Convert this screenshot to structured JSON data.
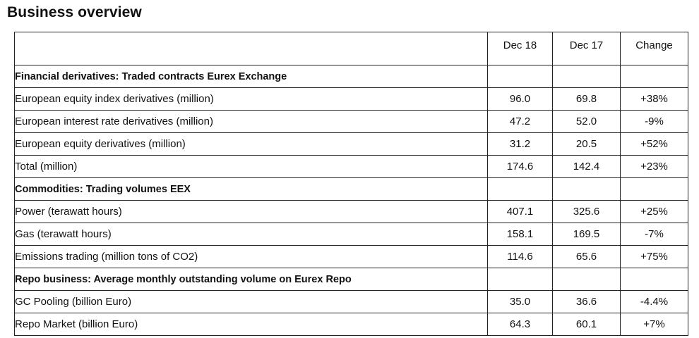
{
  "page": {
    "title": "Business overview"
  },
  "table": {
    "headers": [
      "",
      "Dec 18",
      "Dec 17",
      "Change"
    ],
    "sections": [
      {
        "title": "Financial derivatives: Traded contracts Eurex Exchange",
        "rows": [
          {
            "label": "European equity index derivatives (million)",
            "dec18": "96.0",
            "dec17": "69.8",
            "change": "+38%"
          },
          {
            "label": "European interest rate derivatives (million)",
            "dec18": "47.2",
            "dec17": "52.0",
            "change": "-9%"
          },
          {
            "label": "European equity derivatives (million)",
            "dec18": "31.2",
            "dec17": "20.5",
            "change": "+52%"
          },
          {
            "label": "Total (million)",
            "dec18": "174.6",
            "dec17": "142.4",
            "change": "+23%"
          }
        ]
      },
      {
        "title": "Commodities: Trading volumes EEX",
        "rows": [
          {
            "label": "Power (terawatt hours)",
            "dec18": "407.1",
            "dec17": "325.6",
            "change": "+25%"
          },
          {
            "label": "Gas (terawatt hours)",
            "dec18": "158.1",
            "dec17": "169.5",
            "change": "-7%"
          },
          {
            "label": "Emissions trading (million tons of CO2)",
            "dec18": "114.6",
            "dec17": "65.6",
            "change": "+75%"
          }
        ]
      },
      {
        "title": "Repo business: Average monthly outstanding volume on Eurex Repo",
        "rows": [
          {
            "label": "GC Pooling (billion Euro)",
            "dec18": "35.0",
            "dec17": "36.6",
            "change": "-4.4%"
          },
          {
            "label": "Repo Market (billion Euro)",
            "dec18": "64.3",
            "dec17": "60.1",
            "change": "+7%"
          }
        ]
      }
    ]
  }
}
